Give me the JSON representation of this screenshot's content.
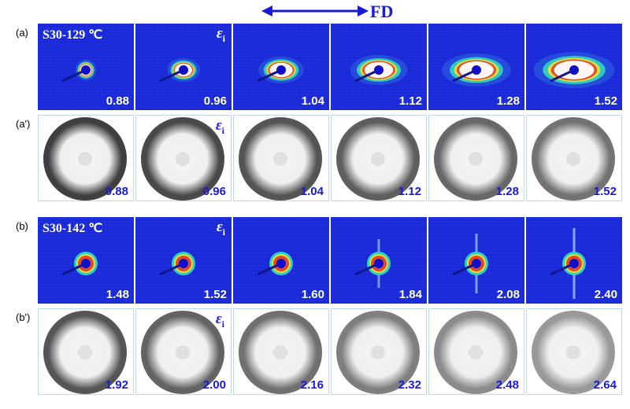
{
  "header": {
    "fd_label": "FD"
  },
  "rows": [
    {
      "label": "(a)",
      "type": "saxs",
      "tag": "S30-129 ℃",
      "values": [
        "0.88",
        "0.96",
        "1.04",
        "1.12",
        "1.28",
        "1.52"
      ],
      "eps_panel": 1,
      "style": "hot"
    },
    {
      "label": "(a')",
      "type": "waxs",
      "values": [
        "0.88",
        "0.96",
        "1.04",
        "1.12",
        "1.28",
        "1.52"
      ],
      "eps_panel": 1,
      "style": "ring"
    },
    {
      "label": "(b)",
      "type": "saxs",
      "tag": "S30-142 ℃",
      "values": [
        "1.48",
        "1.52",
        "1.60",
        "1.84",
        "2.08",
        "2.40"
      ],
      "eps_panel": 1,
      "style": "streak"
    },
    {
      "label": "(b')",
      "type": "waxs",
      "values": [
        "1.92",
        "2.00",
        "2.16",
        "2.32",
        "2.48",
        "2.64"
      ],
      "eps_panel": 1,
      "style": "fade"
    }
  ],
  "eps_symbol": "ε",
  "eps_sub": "i",
  "colors": {
    "saxs_bg": "#1b2bd9",
    "accent_blue": "#1a1ad6",
    "panel_border": "#bcd6ea"
  }
}
